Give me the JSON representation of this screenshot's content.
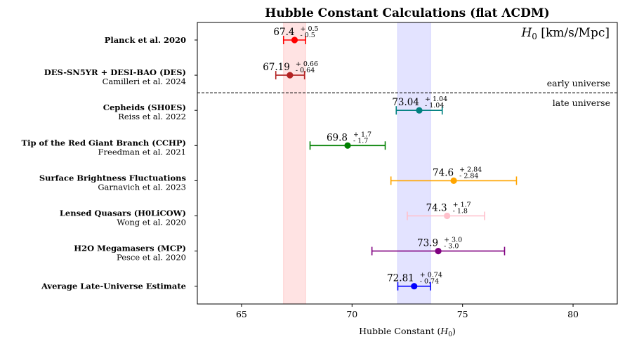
{
  "chart_data": {
    "type": "scatter",
    "title": "Hubble Constant Calculations (flat ΛCDM)",
    "xlabel": "Hubble Constant (",
    "xlabel_symbol": "H",
    "xlabel_sub": "0",
    "xlabel_close": ")",
    "units_label": {
      "symbol": "H",
      "sub": "0",
      "text": " [km/s/Mpc]"
    },
    "xlim": [
      63,
      82
    ],
    "xticks": [
      65,
      70,
      75,
      80
    ],
    "bands": [
      {
        "from": 66.9,
        "to": 67.9,
        "color": "#ffcccc"
      },
      {
        "from": 72.07,
        "to": 73.55,
        "color": "#ccccff"
      }
    ],
    "divider": {
      "labels": {
        "above": "early universe",
        "below": "late universe"
      }
    },
    "measurements": [
      {
        "label": "Planck et al. 2020",
        "ref": "",
        "value": 67.4,
        "value_text": "67.4",
        "plus": 0.5,
        "minus": 0.5,
        "plus_text": "+ 0.5",
        "minus_text": "- 0.5",
        "color": "#ff0000"
      },
      {
        "label": "DES-SN5YR + DESI-BAO (DES)",
        "ref": "Camilleri et al. 2024",
        "value": 67.19,
        "value_text": "67.19",
        "plus": 0.66,
        "minus": 0.64,
        "plus_text": "+ 0.66",
        "minus_text": "- 0.64",
        "color": "#b22222"
      },
      {
        "label": "Cepheids (SH0ES)",
        "ref": "Reiss et al. 2022",
        "value": 73.04,
        "value_text": "73.04",
        "plus": 1.04,
        "minus": 1.04,
        "plus_text": "+ 1.04",
        "minus_text": "- 1.04",
        "color": "#008080"
      },
      {
        "label": "Tip of the Red Giant Branch (CCHP)",
        "ref": "Freedman et al. 2021",
        "value": 69.8,
        "value_text": "69.8",
        "plus": 1.7,
        "minus": 1.7,
        "plus_text": "+ 1.7",
        "minus_text": "- 1.7",
        "color": "#008000"
      },
      {
        "label": "Surface Brightness Fluctuations",
        "ref": "Garnavich et al. 2023",
        "value": 74.6,
        "value_text": "74.6",
        "plus": 2.84,
        "minus": 2.84,
        "plus_text": "+ 2.84",
        "minus_text": "- 2.84",
        "color": "#ffa500"
      },
      {
        "label": "Lensed Quasars (H0LiCOW)",
        "ref": "Wong et al. 2020",
        "value": 74.3,
        "value_text": "74.3",
        "plus": 1.7,
        "minus": 1.8,
        "plus_text": "+ 1.7",
        "minus_text": "- 1.8",
        "color": "#ffc0cb"
      },
      {
        "label": "H2O Megamasers (MCP)",
        "ref": "Pesce et al. 2020",
        "value": 73.9,
        "value_text": "73.9",
        "plus": 3.0,
        "minus": 3.0,
        "plus_text": "+ 3.0",
        "minus_text": "- 3.0",
        "color": "#800080"
      },
      {
        "label": "Average Late-Universe Estimate",
        "ref": "",
        "value": 72.81,
        "value_text": "72.81",
        "plus": 0.74,
        "minus": 0.74,
        "plus_text": "+ 0.74",
        "minus_text": "- 0.74",
        "color": "#0000ff"
      }
    ],
    "grid": false
  }
}
